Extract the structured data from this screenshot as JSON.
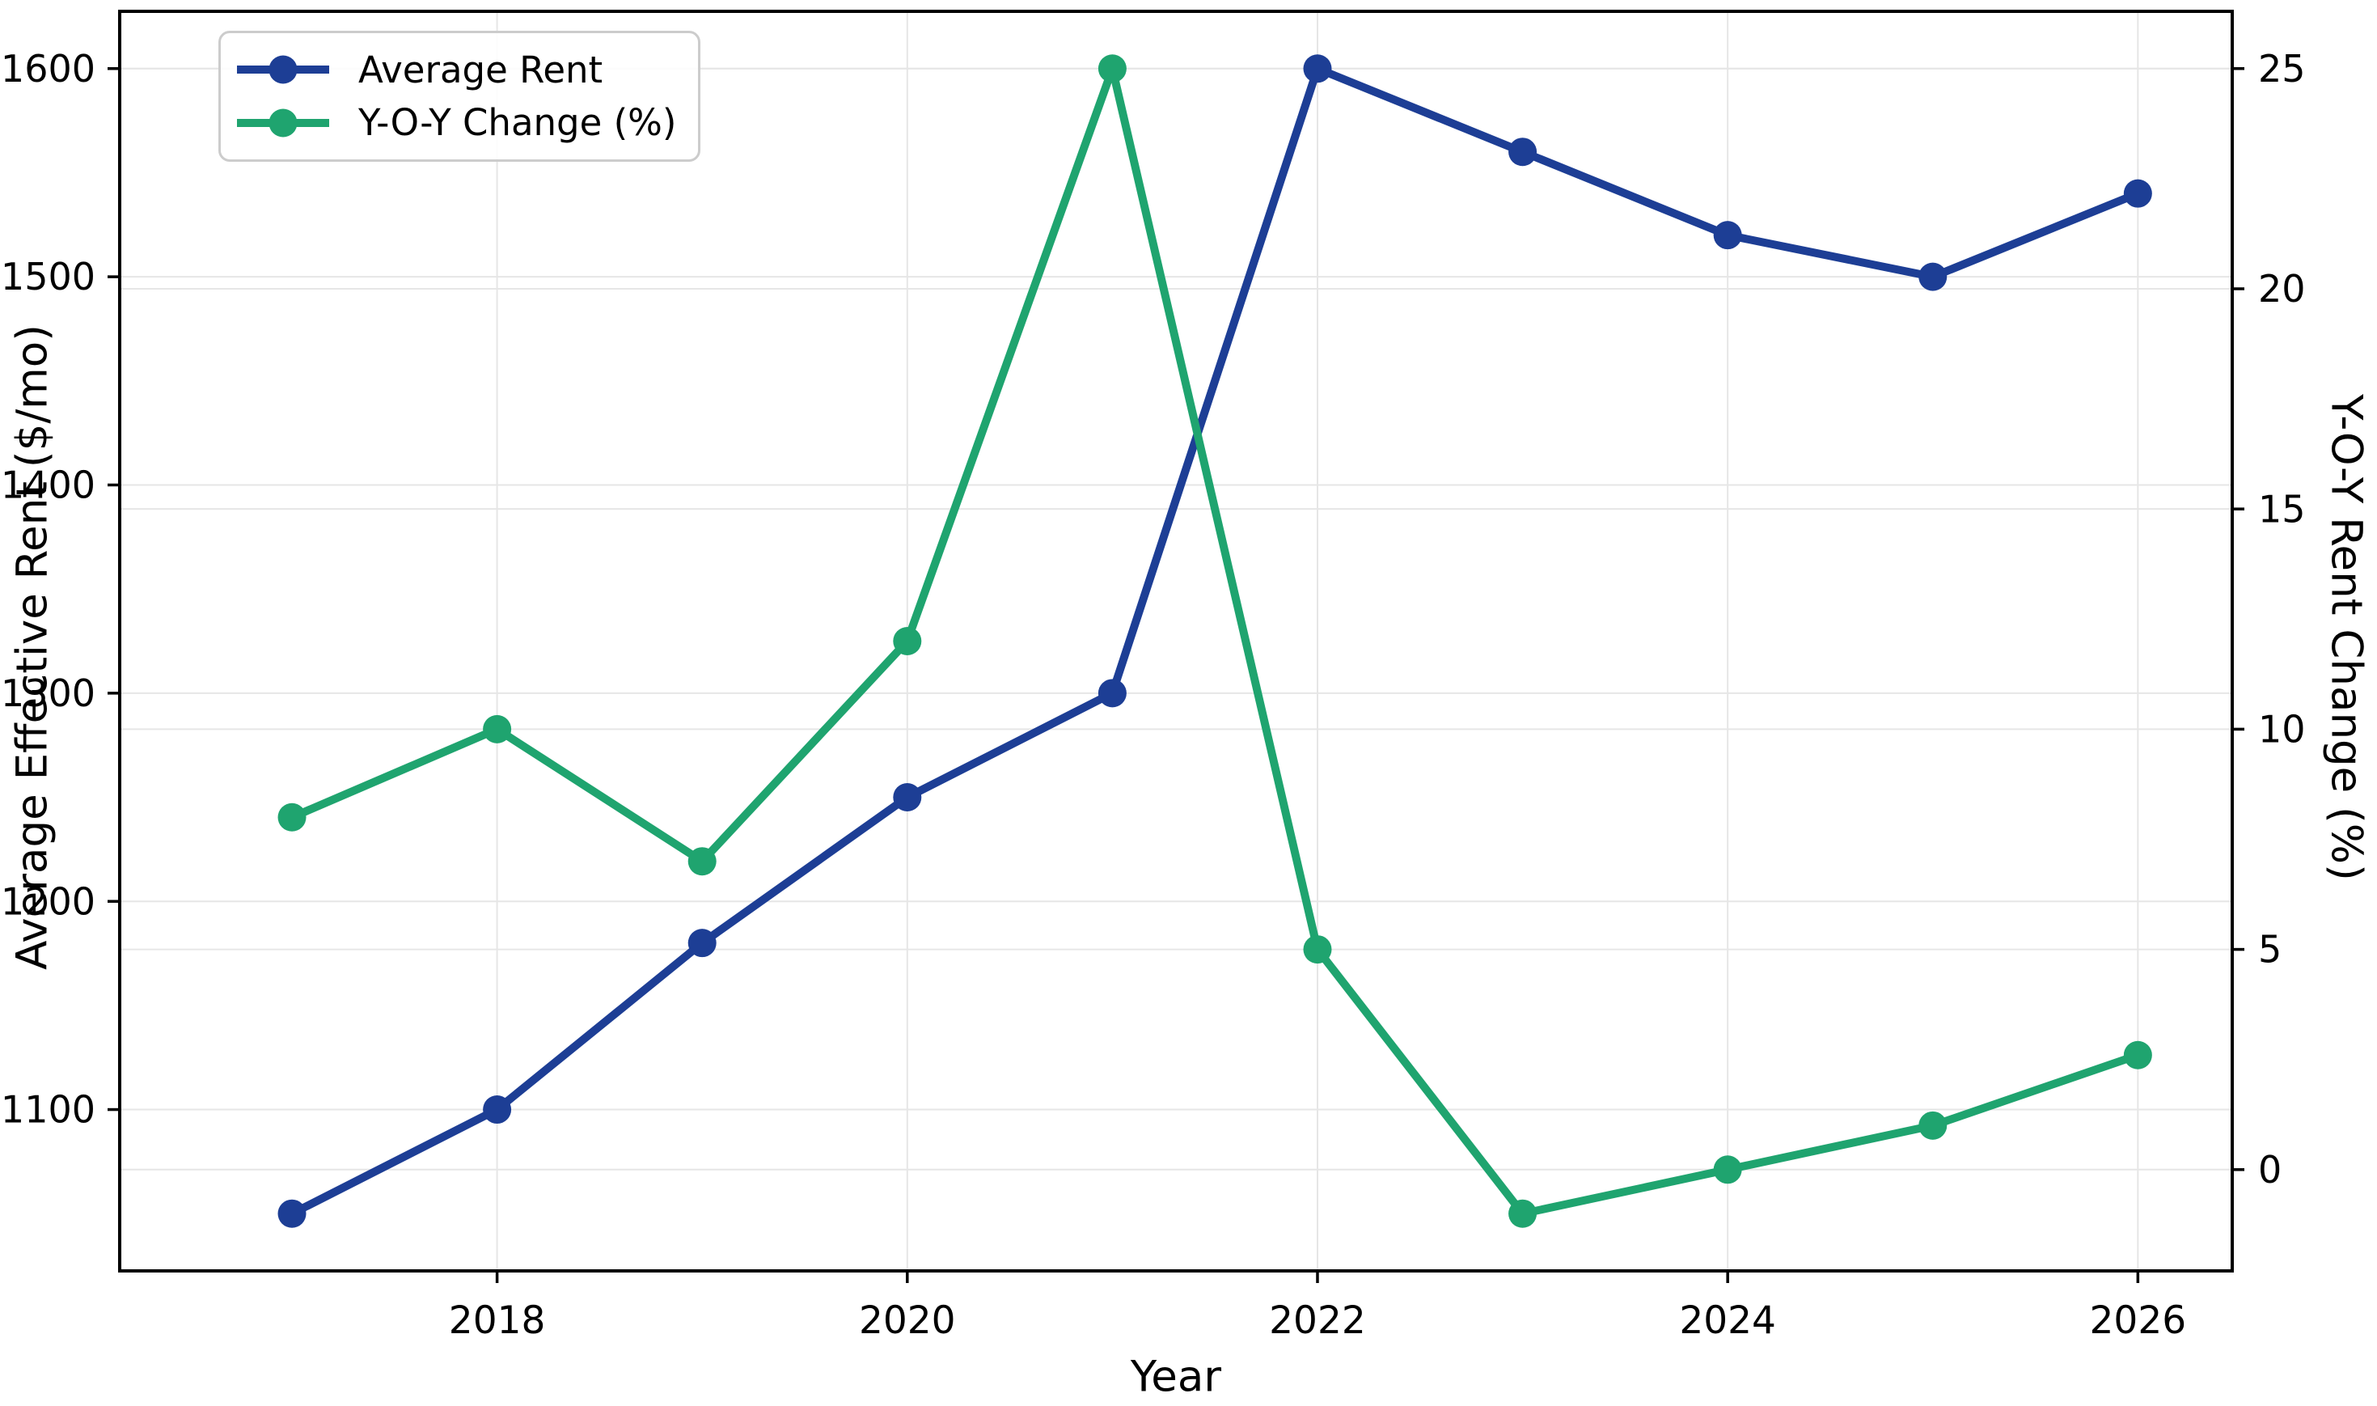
{
  "chart_data": {
    "type": "line",
    "title": "",
    "xlabel": "Year",
    "ylabel_left": "Average Effective Rent ($/mo)",
    "ylabel_right": "Y-O-Y Rent Change (%)",
    "x": [
      2017,
      2018,
      2019,
      2020,
      2021,
      2022,
      2023,
      2024,
      2025,
      2026
    ],
    "series": [
      {
        "name": "Average Rent",
        "axis": "left",
        "color": "#1d3e95",
        "values": [
          1050,
          1100,
          1180,
          1250,
          1300,
          1600,
          1560,
          1520,
          1500,
          1540
        ]
      },
      {
        "name": "Y-O-Y Change (%)",
        "axis": "right",
        "color": "#1fa46f",
        "values": [
          8,
          10,
          7,
          12,
          25,
          5,
          -1,
          0,
          1,
          2.6
        ]
      }
    ],
    "left_axis": {
      "ticks": [
        1100,
        1200,
        1300,
        1400,
        1500,
        1600
      ],
      "range": [
        1022.5,
        1627.5
      ]
    },
    "right_axis": {
      "ticks": [
        0,
        5,
        10,
        15,
        20,
        25
      ],
      "range": [
        -2.3,
        26.3
      ]
    },
    "x_axis": {
      "ticks": [
        2018,
        2020,
        2022,
        2024,
        2026
      ],
      "range": [
        2016.16,
        2026.46
      ]
    },
    "grid": true,
    "legend": {
      "position": "upper-left",
      "entries": [
        "Average Rent",
        "Y-O-Y Change (%)"
      ]
    },
    "colors": {
      "gridline": "#e6e6e6",
      "spine": "#000000",
      "text": "#000000",
      "legend_border": "#cccccc"
    }
  }
}
